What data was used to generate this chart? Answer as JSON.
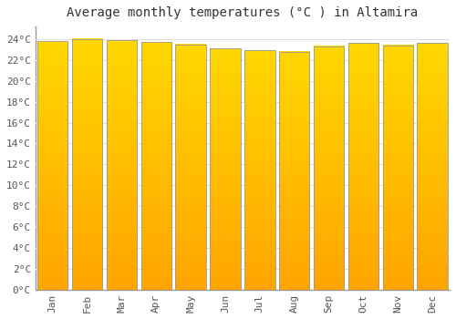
{
  "months": [
    "Jan",
    "Feb",
    "Mar",
    "Apr",
    "May",
    "Jun",
    "Jul",
    "Aug",
    "Sep",
    "Oct",
    "Nov",
    "Dec"
  ],
  "values": [
    23.8,
    24.0,
    23.9,
    23.7,
    23.5,
    23.1,
    22.9,
    22.8,
    23.3,
    23.6,
    23.4,
    23.6
  ],
  "bar_color": "#FFA500",
  "bar_edge_color": "#999999",
  "background_color": "#ffffff",
  "plot_bg_color": "#ffffff",
  "grid_color": "#dddddd",
  "title": "Average monthly temperatures (°C ) in Altamira",
  "ylabel_ticks": [
    "0°C",
    "2°C",
    "4°C",
    "6°C",
    "8°C",
    "10°C",
    "12°C",
    "14°C",
    "16°C",
    "18°C",
    "20°C",
    "22°C",
    "24°C"
  ],
  "ytick_values": [
    0,
    2,
    4,
    6,
    8,
    10,
    12,
    14,
    16,
    18,
    20,
    22,
    24
  ],
  "ylim": [
    0,
    25.2
  ],
  "title_fontsize": 10,
  "tick_fontsize": 8,
  "font_family": "monospace",
  "bar_width": 0.88,
  "gradient_top": "#FFD700",
  "gradient_bottom": "#FFA500"
}
